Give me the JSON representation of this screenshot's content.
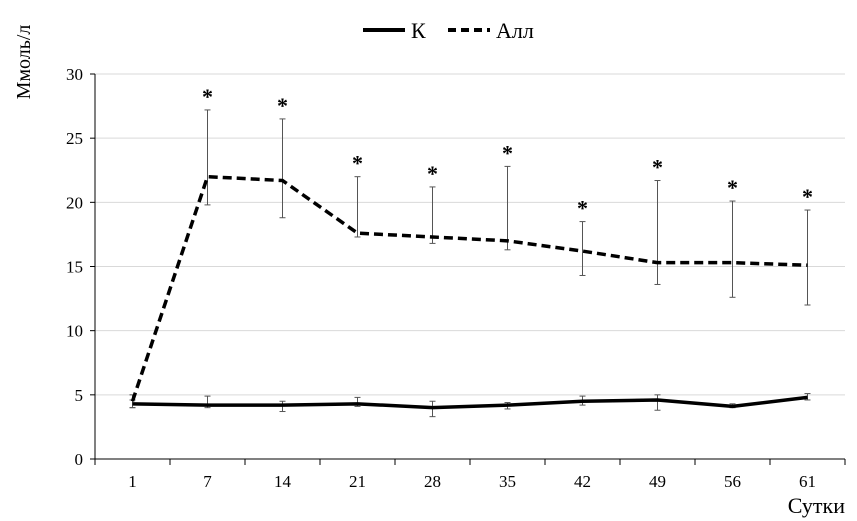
{
  "chart_data": {
    "type": "line",
    "title": "",
    "xlabel": "Сутки",
    "ylabel": "Ммоль/л",
    "categories": [
      "1",
      "7",
      "14",
      "21",
      "28",
      "35",
      "42",
      "49",
      "56",
      "61"
    ],
    "ylim": [
      0,
      30
    ],
    "yticks": [
      "0",
      "5",
      "10",
      "15",
      "20",
      "25",
      "30"
    ],
    "grid": true,
    "legend_position": "top-center",
    "series": [
      {
        "name": "К",
        "style": "solid",
        "color": "#000000",
        "values": [
          4.3,
          4.2,
          4.2,
          4.3,
          4.0,
          4.2,
          4.5,
          4.6,
          4.1,
          4.8
        ],
        "error_upper": [
          4.6,
          4.9,
          4.5,
          4.8,
          4.5,
          4.4,
          4.9,
          5.0,
          4.3,
          5.1
        ],
        "error_lower": [
          4.0,
          4.0,
          3.7,
          4.1,
          3.3,
          3.9,
          4.2,
          3.8,
          4.0,
          4.6
        ]
      },
      {
        "name": "Алл",
        "style": "dashed",
        "color": "#000000",
        "values": [
          4.5,
          22.0,
          21.7,
          17.6,
          17.3,
          17.0,
          16.2,
          15.3,
          15.3,
          15.1
        ],
        "error_upper": [
          5.0,
          27.2,
          26.5,
          22.0,
          21.2,
          22.8,
          18.5,
          21.7,
          20.1,
          19.4
        ],
        "error_lower": [
          4.0,
          19.8,
          18.8,
          17.3,
          16.8,
          16.3,
          14.3,
          13.6,
          12.6,
          12.0
        ]
      }
    ],
    "annotations": {
      "marker": "*",
      "series": "Алл",
      "categories": [
        "7",
        "14",
        "21",
        "28",
        "35",
        "42",
        "49",
        "56",
        "61"
      ]
    }
  }
}
